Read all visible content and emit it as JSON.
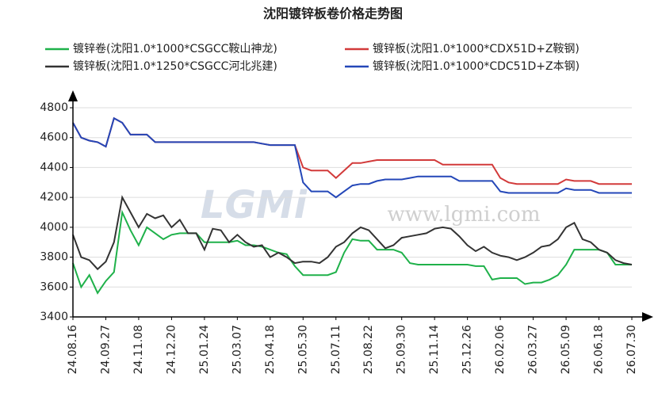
{
  "chart_data": {
    "type": "line",
    "title": "沈阳镀锌板卷价格走势图",
    "watermark": [
      "LGMi",
      "www.lgmi.com"
    ],
    "categories": [
      "24.08.16",
      null,
      null,
      null,
      "24.09.27",
      null,
      null,
      null,
      "24.11.08",
      null,
      null,
      null,
      "24.12.20",
      null,
      null,
      null,
      "25.01.24",
      null,
      null,
      null,
      "25.03.07",
      null,
      null,
      null,
      "25.04.18",
      null,
      null,
      null,
      "25.05.30",
      null,
      null,
      null,
      "25.07.11",
      null,
      null,
      null,
      "25.08.22",
      null,
      null,
      null,
      "25.09.30",
      null,
      null,
      null,
      "25.11.14",
      null,
      null,
      null,
      "25.12.26",
      null,
      null,
      null,
      "26.02.06",
      null,
      null,
      null,
      "26.03.27",
      null,
      null,
      null,
      "26.05.09",
      null,
      null,
      null,
      "26.06.18",
      null,
      null,
      null,
      "26.07.30"
    ],
    "ylim": [
      3400,
      4800
    ],
    "yticks": [
      3400,
      3600,
      3800,
      4000,
      4200,
      4400,
      4600,
      4800
    ],
    "grid": true,
    "series": [
      {
        "name": "镀锌卷(沈阳1.0*1000*CSGCC鞍山神龙)",
        "color": "#1fb14a",
        "values": [
          3760,
          3600,
          3680,
          3560,
          3640,
          3700,
          4100,
          3980,
          3880,
          4000,
          3960,
          3920,
          3950,
          3960,
          3960,
          3960,
          3900,
          3900,
          3900,
          3900,
          3910,
          3880,
          3880,
          3870,
          3850,
          3830,
          3820,
          3740,
          3680,
          3680,
          3680,
          3680,
          3700,
          3830,
          3920,
          3910,
          3910,
          3850,
          3850,
          3850,
          3830,
          3760,
          3750,
          3750,
          3750,
          3750,
          3750,
          3750,
          3750,
          3740,
          3740,
          3650,
          3660,
          3660,
          3660,
          3620,
          3630,
          3630,
          3650,
          3680,
          3750,
          3850,
          3850,
          3850,
          3850,
          3830,
          3750,
          3750,
          3750
        ]
      },
      {
        "name": "镀锌板(沈阳1.0*1000*CDX51D+Z鞍钢)",
        "color": "#d23a3a",
        "values": [
          4700,
          4600,
          4580,
          4570,
          4540,
          4730,
          4700,
          4620,
          4620,
          4620,
          4570,
          4570,
          4570,
          4570,
          4570,
          4570,
          4570,
          4570,
          4570,
          4570,
          4570,
          4570,
          4570,
          4560,
          4550,
          4550,
          4550,
          4550,
          4400,
          4380,
          4380,
          4380,
          4330,
          4380,
          4430,
          4430,
          4440,
          4450,
          4450,
          4450,
          4450,
          4450,
          4450,
          4450,
          4450,
          4420,
          4420,
          4420,
          4420,
          4420,
          4420,
          4420,
          4330,
          4300,
          4290,
          4290,
          4290,
          4290,
          4290,
          4290,
          4320,
          4310,
          4310,
          4310,
          4290,
          4290,
          4290,
          4290,
          4290
        ]
      },
      {
        "name": "镀锌板(沈阳1.0*1250*CSGCC河北兆建)",
        "color": "#333333",
        "values": [
          3950,
          3800,
          3780,
          3720,
          3770,
          3900,
          4200,
          4100,
          4000,
          4090,
          4060,
          4080,
          4000,
          4050,
          3960,
          3960,
          3850,
          3990,
          3980,
          3900,
          3950,
          3900,
          3870,
          3880,
          3800,
          3830,
          3800,
          3760,
          3770,
          3770,
          3760,
          3800,
          3870,
          3900,
          3960,
          4000,
          3980,
          3920,
          3860,
          3880,
          3930,
          3940,
          3950,
          3960,
          3990,
          4000,
          3990,
          3940,
          3880,
          3840,
          3870,
          3830,
          3810,
          3800,
          3780,
          3800,
          3830,
          3870,
          3880,
          3920,
          4000,
          4030,
          3920,
          3900,
          3850,
          3830,
          3780,
          3760,
          3750
        ]
      },
      {
        "name": "镀锌板(沈阳1.0*1000*CDC51D+Z本钢)",
        "color": "#2447b8",
        "values": [
          4700,
          4600,
          4580,
          4570,
          4540,
          4730,
          4700,
          4620,
          4620,
          4620,
          4570,
          4570,
          4570,
          4570,
          4570,
          4570,
          4570,
          4570,
          4570,
          4570,
          4570,
          4570,
          4570,
          4560,
          4550,
          4550,
          4550,
          4550,
          4300,
          4240,
          4240,
          4240,
          4200,
          4240,
          4280,
          4290,
          4290,
          4310,
          4320,
          4320,
          4320,
          4330,
          4340,
          4340,
          4340,
          4340,
          4340,
          4310,
          4310,
          4310,
          4310,
          4310,
          4240,
          4230,
          4230,
          4230,
          4230,
          4230,
          4230,
          4230,
          4260,
          4250,
          4250,
          4250,
          4230,
          4230,
          4230,
          4230,
          4230
        ]
      }
    ]
  }
}
